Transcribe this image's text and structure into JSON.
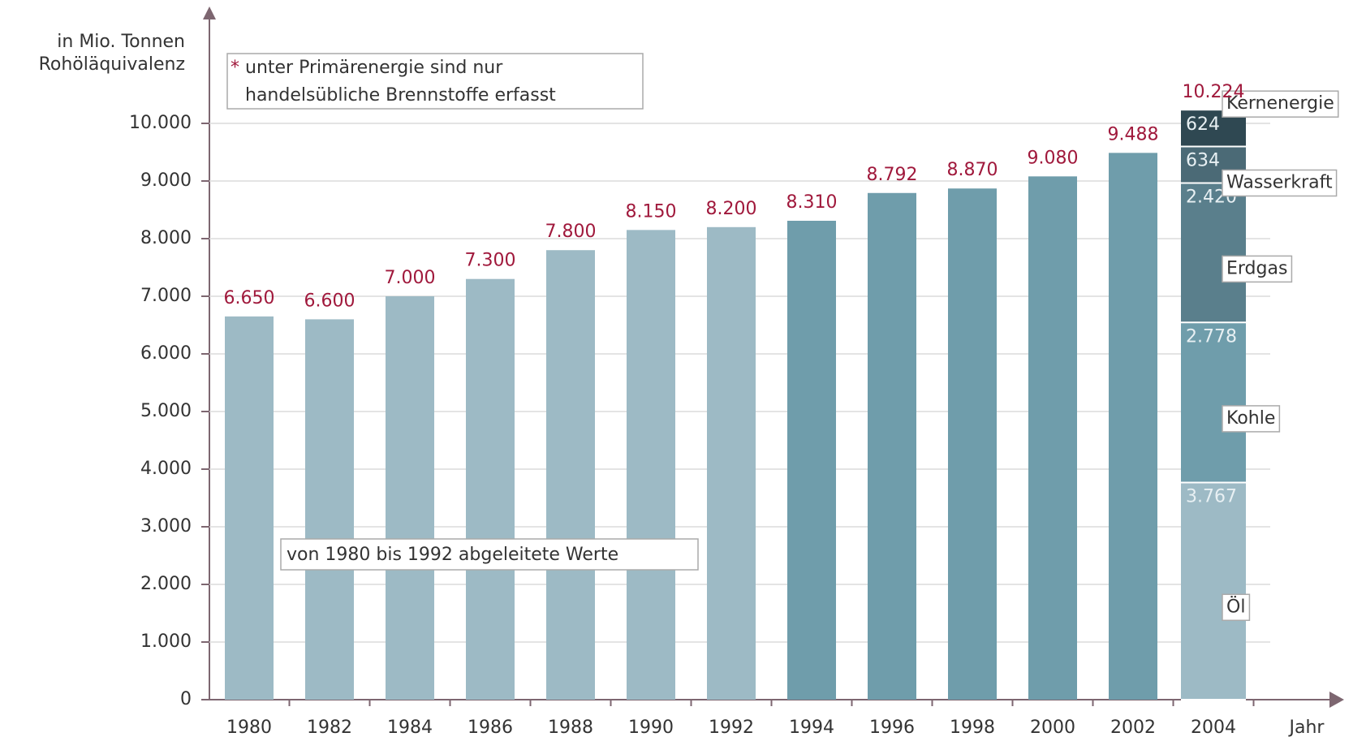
{
  "chart_data": {
    "type": "bar",
    "y_axis_label": [
      "in Mio. Tonnen",
      "Rohöläquivalenz"
    ],
    "x_axis_label": "Jahr",
    "footnote": {
      "mark": "*",
      "lines": [
        "unter Primärenergie sind nur",
        "handelsübliche Brennstoffe erfasst"
      ]
    },
    "annotation": "von 1980 bis 1992 abgeleitete Werte",
    "categories": [
      "1980",
      "1982",
      "1984",
      "1986",
      "1988",
      "1990",
      "1992",
      "1994",
      "1996",
      "1998",
      "2000",
      "2002",
      "2004"
    ],
    "values": [
      6650,
      6600,
      7000,
      7300,
      7800,
      8150,
      8200,
      8310,
      8792,
      8870,
      9080,
      9488,
      10224
    ],
    "value_labels": [
      "6.650",
      "6.600",
      "7.000",
      "7.300",
      "7.800",
      "8.150",
      "8.200",
      "8.310",
      "8.792",
      "8.870",
      "9.080",
      "9.488",
      "10.224"
    ],
    "color": "#6f9dab",
    "derived_color": "#9dbac5",
    "derived_end": "1992",
    "value_label_color": "#a0193c",
    "stack": {
      "category": "2004",
      "series": [
        {
          "name": "Öl",
          "value": 3767,
          "value_label": "3.767",
          "color": "#9dbac5"
        },
        {
          "name": "Kohle",
          "value": 2778,
          "value_label": "2.778",
          "color": "#6f9dab"
        },
        {
          "name": "Erdgas",
          "value": 2420,
          "value_label": "2.420",
          "color": "#5a7f8c"
        },
        {
          "name": "Wasserkraft",
          "value": 634,
          "value_label": "634",
          "color": "#4b6a76"
        },
        {
          "name": "Kernenergie",
          "value": 624,
          "value_label": "624",
          "color": "#2f4852"
        }
      ]
    },
    "ylim": [
      0,
      10000
    ],
    "yticks": [
      0,
      {
        "value": 1000,
        "label": "1.000"
      },
      {
        "value": 2000,
        "label": "2.000"
      },
      {
        "value": 3000,
        "label": "3.000"
      },
      {
        "value": 4000,
        "label": "4.000"
      },
      {
        "value": 5000,
        "label": "5.000"
      },
      {
        "value": 6000,
        "label": "6.000"
      },
      {
        "value": 7000,
        "label": "7.000"
      },
      {
        "value": 8000,
        "label": "8.000"
      },
      {
        "value": 9000,
        "label": "9.000"
      },
      {
        "value": 10000,
        "label": "10.000"
      }
    ],
    "grid": true
  }
}
